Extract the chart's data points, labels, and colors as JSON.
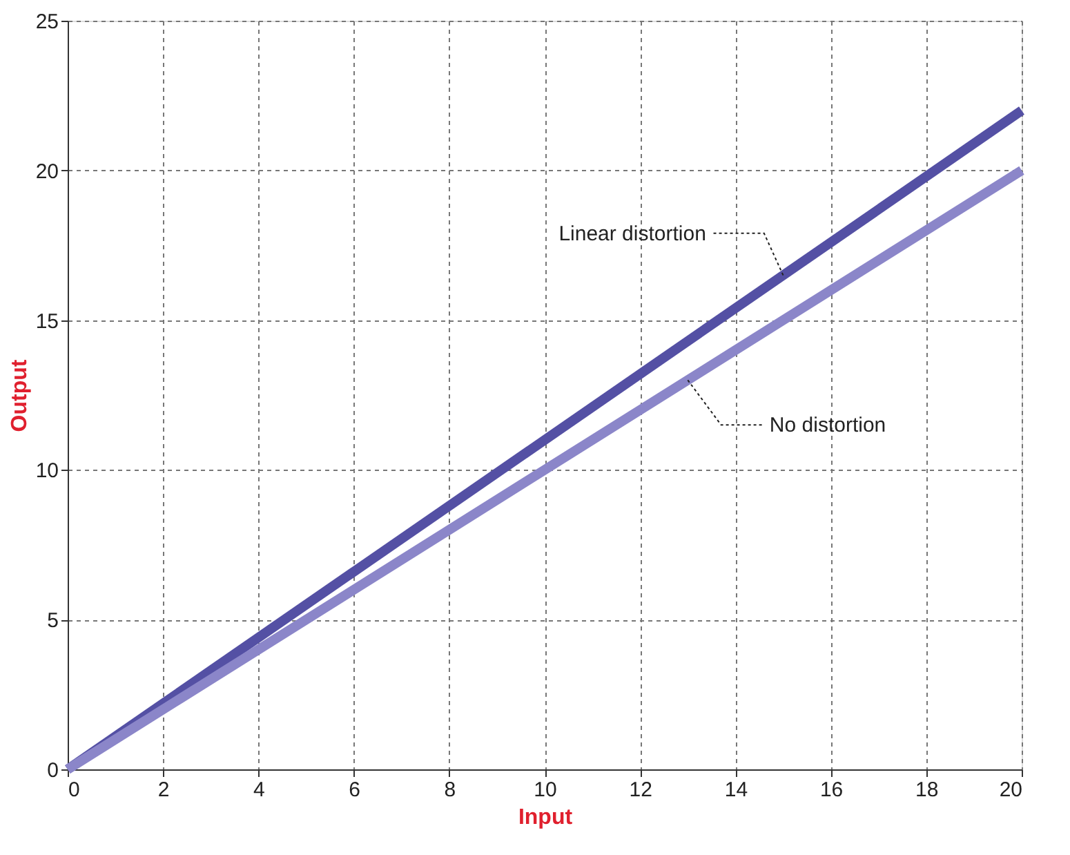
{
  "chart_data": {
    "type": "line",
    "xlabel": "Input",
    "ylabel": "Output",
    "x": [
      0,
      20
    ],
    "series": [
      {
        "color": "#5450a4",
        "values": [
          0,
          22
        ]
      },
      {
        "color": "#8b86c9",
        "values": [
          0,
          20
        ]
      }
    ],
    "xlim": [
      0,
      20
    ],
    "xticks": [
      0,
      2,
      4,
      6,
      8,
      10,
      12,
      14,
      16,
      18,
      20
    ],
    "ylim": [
      0,
      25
    ],
    "yticks": [
      0,
      5,
      10,
      15,
      20,
      25
    ],
    "grid": true,
    "legend": false,
    "line_style": "solid",
    "marker": "none",
    "annotations": [
      {
        "text": "Linear distortion",
        "x": 15,
        "y": 16.5
      },
      {
        "text": "No distortion",
        "x": 13,
        "y": 13
      }
    ]
  }
}
